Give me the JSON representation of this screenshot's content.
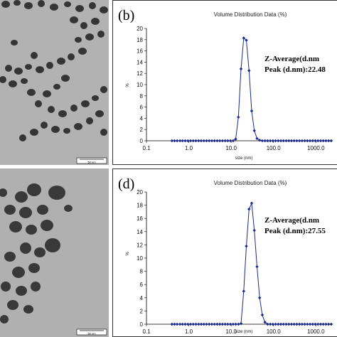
{
  "tem_images": [
    {
      "scale_label": "50 nm"
    },
    {
      "scale_label": "50 nm"
    }
  ],
  "chart_data": [
    {
      "type": "line",
      "panel_label": "(b)",
      "title": "Volume Distribution Data (%)",
      "xlabel": "size (nm)",
      "ylabel": "%",
      "xscale": "log",
      "xlim": [
        0.1,
        2500
      ],
      "ylim": [
        0,
        20
      ],
      "xticks": [
        "0.1",
        "1.0",
        "10.0",
        "100.0",
        "1000.0"
      ],
      "yticks": [
        "0",
        "2",
        "4",
        "6",
        "8",
        "10",
        "12",
        "14",
        "16",
        "18",
        "20"
      ],
      "annotations": [
        "Z-Average(d.nm",
        "Peak (d.nm):22.48"
      ],
      "series": [
        {
          "color": "#1a2a8a",
          "x": [
            0.4,
            0.46,
            0.53,
            0.62,
            0.71,
            0.82,
            0.95,
            1.1,
            1.27,
            1.47,
            1.7,
            1.96,
            2.27,
            2.62,
            3.03,
            3.5,
            4.04,
            4.67,
            5.39,
            6.23,
            7.2,
            8.31,
            9.6,
            11.1,
            12.8,
            14.8,
            17.1,
            19.8,
            22.8,
            26.4,
            30.5,
            35.2,
            40.7,
            47,
            54.3,
            62.7,
            72.4,
            83.7,
            96.6,
            111.6,
            129,
            149,
            172,
            199,
            230,
            265,
            306,
            354,
            409,
            472,
            545,
            630,
            728,
            840,
            970,
            1120,
            1295,
            1496,
            1728,
            1995,
            2300
          ],
          "y": [
            0,
            0,
            0,
            0,
            0,
            0,
            0,
            0,
            0,
            0,
            0,
            0,
            0,
            0,
            0,
            0,
            0,
            0,
            0,
            0,
            0,
            0,
            0,
            0,
            0.3,
            4.2,
            12.8,
            18.3,
            17.9,
            12.5,
            5.3,
            1.8,
            0.4,
            0.1,
            0,
            0,
            0,
            0,
            0,
            0,
            0,
            0,
            0,
            0,
            0,
            0,
            0,
            0,
            0,
            0,
            0,
            0,
            0,
            0,
            0,
            0,
            0,
            0,
            0,
            0,
            0
          ]
        }
      ]
    },
    {
      "type": "line",
      "panel_label": "(d)",
      "title": "Volume Distribution Data (%)",
      "xlabel": "size (nm)",
      "ylabel": "%",
      "xscale": "log",
      "xlim": [
        0.1,
        2500
      ],
      "ylim": [
        0,
        20
      ],
      "xticks": [
        "0.1",
        "1.0",
        "10.0",
        "100.0",
        "1000.0"
      ],
      "yticks": [
        "0",
        "2",
        "4",
        "6",
        "8",
        "10",
        "12",
        "14",
        "16",
        "18",
        "20"
      ],
      "annotations": [
        "Z-Average(d.nm",
        "Peak (d.nm):27.55"
      ],
      "series": [
        {
          "color": "#1a2a8a",
          "x": [
            0.4,
            0.46,
            0.53,
            0.62,
            0.71,
            0.82,
            0.95,
            1.1,
            1.27,
            1.47,
            1.7,
            1.96,
            2.27,
            2.62,
            3.03,
            3.5,
            4.04,
            4.67,
            5.39,
            6.23,
            7.2,
            8.31,
            9.6,
            11.1,
            12.8,
            14.8,
            17.1,
            19.8,
            22.8,
            26.4,
            30.5,
            35.2,
            40.7,
            47,
            54.3,
            62.7,
            72.4,
            83.7,
            96.6,
            111.6,
            129,
            149,
            172,
            199,
            230,
            265,
            306,
            354,
            409,
            472,
            545,
            630,
            728,
            840,
            970,
            1120,
            1295,
            1496,
            1728,
            1995,
            2300
          ],
          "y": [
            0,
            0,
            0,
            0,
            0,
            0,
            0,
            0,
            0,
            0,
            0,
            0,
            0,
            0,
            0,
            0,
            0,
            0,
            0,
            0,
            0,
            0,
            0,
            0,
            0,
            0,
            0.1,
            5.0,
            11.8,
            17.4,
            18.3,
            14.2,
            8.7,
            4.0,
            1.4,
            0.3,
            0,
            0,
            0,
            0,
            0,
            0,
            0,
            0,
            0,
            0,
            0,
            0,
            0,
            0,
            0,
            0,
            0,
            0,
            0,
            0,
            0,
            0,
            0,
            0,
            0
          ]
        }
      ]
    }
  ]
}
